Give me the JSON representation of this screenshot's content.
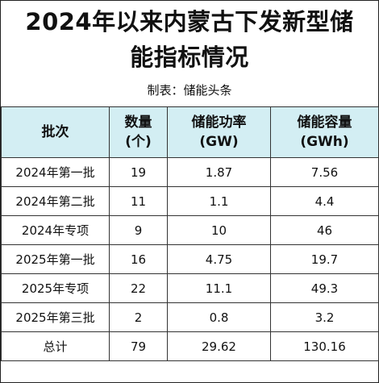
{
  "title_line1": "2024年以来内蒙古下发新型储",
  "title_line2": "能指标情况",
  "subtitle": "制表：储能头条",
  "chart_data": {
    "type": "table",
    "title": "2024年以来内蒙古下发新型储能指标情况",
    "subtitle": "制表：储能头条",
    "header_bg": "#d3eef3",
    "columns": [
      {
        "line1": "批次",
        "line2": ""
      },
      {
        "line1": "数量",
        "line2": "(个)"
      },
      {
        "line1": "储能功率",
        "line2": "(GW)"
      },
      {
        "line1": "储能容量",
        "line2": "(GWh)"
      }
    ],
    "rows": [
      [
        "2024年第一批",
        "19",
        "1.87",
        "7.56"
      ],
      [
        "2024年第二批",
        "11",
        "1.1",
        "4.4"
      ],
      [
        "2024年专项",
        "9",
        "10",
        "46"
      ],
      [
        "2025年第一批",
        "16",
        "4.75",
        "19.7"
      ],
      [
        "2025年专项",
        "22",
        "11.1",
        "49.3"
      ],
      [
        "2025年第三批",
        "2",
        "0.8",
        "3.2"
      ],
      [
        "总计",
        "79",
        "29.62",
        "130.16"
      ]
    ]
  }
}
